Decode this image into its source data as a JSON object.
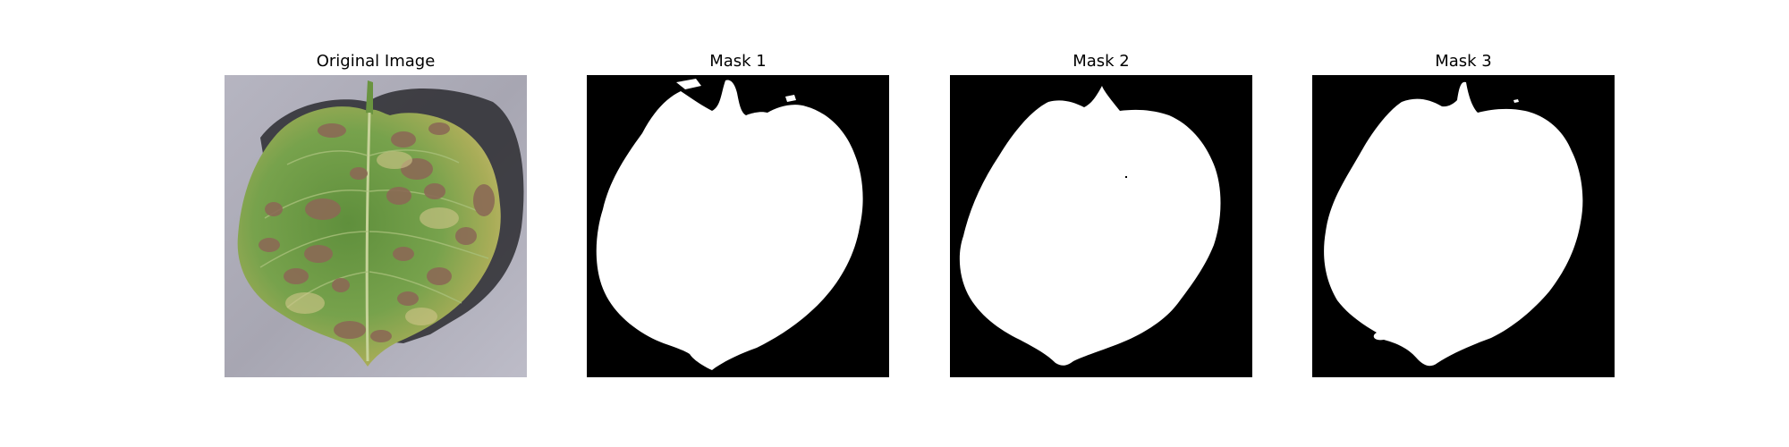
{
  "figure": {
    "panels": [
      {
        "title": "Original Image",
        "kind": "photo"
      },
      {
        "title": "Mask 1",
        "kind": "mask"
      },
      {
        "title": "Mask 2",
        "kind": "mask"
      },
      {
        "title": "Mask 3",
        "kind": "mask"
      }
    ]
  },
  "colors": {
    "mask_background": "#000000",
    "mask_foreground": "#ffffff",
    "photo_background": "#a9a8b4",
    "leaf_green": "#6f9a45",
    "leaf_yellow": "#b9b45c",
    "lesion_brown": "#8a6b55",
    "shadow": "#2a2a2e"
  }
}
